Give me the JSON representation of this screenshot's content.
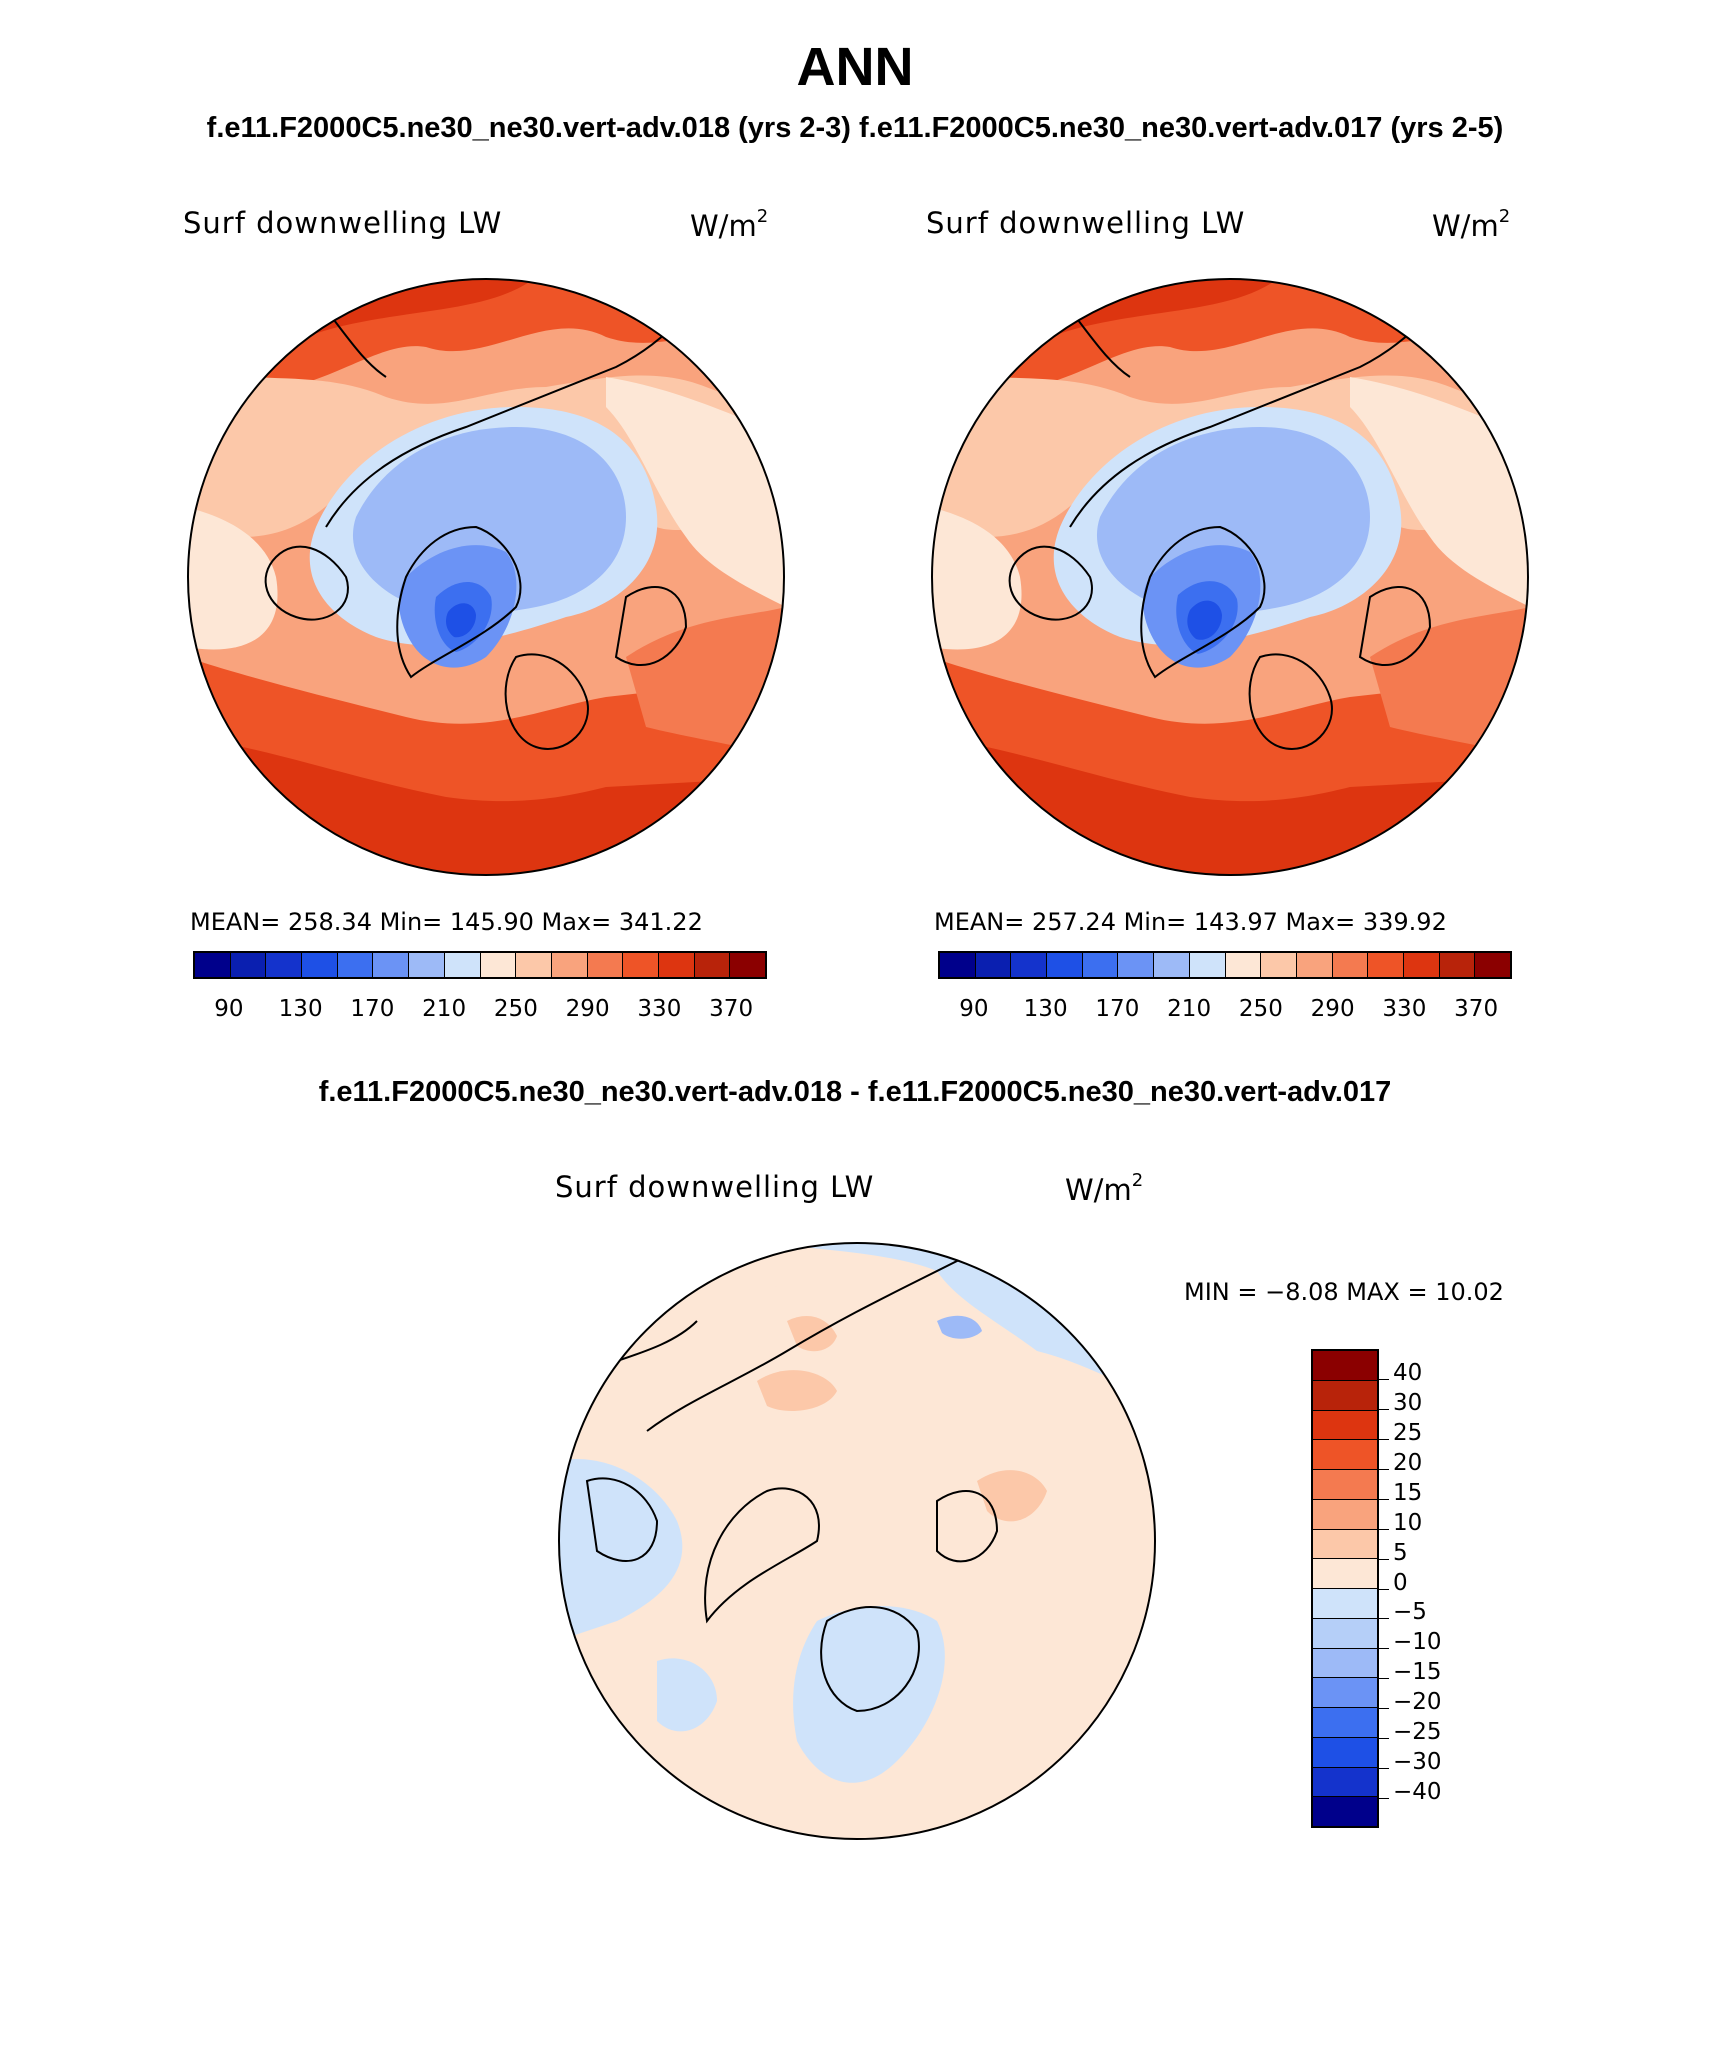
{
  "header": {
    "title": "ANN",
    "subtitle": "f.e11.F2000C5.ne30_ne30.vert-adv.018 (yrs 2-3) f.e11.F2000C5.ne30_ne30.vert-adv.017 (yrs 2-5)"
  },
  "panels": [
    {
      "variable": "Surf downwelling LW",
      "units": "W/m",
      "units_exp": "2",
      "stats": "MEAN= 258.34   Min= 145.90   Max= 341.22"
    },
    {
      "variable": "Surf downwelling LW",
      "units": "W/m",
      "units_exp": "2",
      "stats": "MEAN= 257.24   Min= 143.97   Max= 339.92"
    }
  ],
  "abs_colorbar": {
    "labels": [
      "90",
      "130",
      "170",
      "210",
      "250",
      "290",
      "330",
      "370"
    ],
    "colors": [
      "#00008b",
      "#0a1fb0",
      "#1433cc",
      "#1e50e6",
      "#3c6ff0",
      "#6b93f5",
      "#9dbaf7",
      "#cfe3fa",
      "#fde7d6",
      "#fcc8a9",
      "#f9a37d",
      "#f47a50",
      "#ee5427",
      "#dd3510",
      "#b8230a",
      "#8b0000"
    ]
  },
  "diff": {
    "title": "f.e11.F2000C5.ne30_ne30.vert-adv.018 - f.e11.F2000C5.ne30_ne30.vert-adv.017",
    "variable": "Surf downwelling LW",
    "units": "W/m",
    "units_exp": "2",
    "minmax": "MIN =   −8.08  MAX =    10.02"
  },
  "diff_colorbar": {
    "labels": [
      "40",
      "30",
      "25",
      "20",
      "15",
      "10",
      "5",
      "0",
      "−5",
      "−10",
      "−15",
      "−20",
      "−25",
      "−30",
      "−40"
    ],
    "colors": [
      "#8b0000",
      "#b8230a",
      "#dd3510",
      "#ee5427",
      "#f47a50",
      "#f9a37d",
      "#fcc8a9",
      "#fde7d6",
      "#cfe3fa",
      "#b5cff8",
      "#9dbaf7",
      "#6b93f5",
      "#3c6ff0",
      "#1e50e6",
      "#1433cc",
      "#00008b"
    ]
  }
}
